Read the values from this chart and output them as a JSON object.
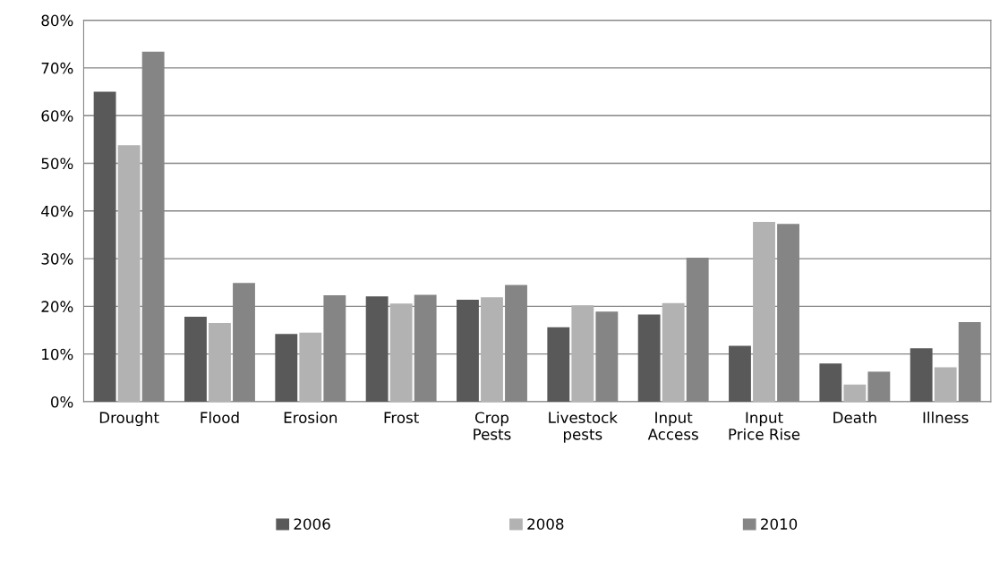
{
  "chart_data": {
    "type": "bar",
    "categories": [
      "Drought",
      "Flood",
      "Erosion",
      "Frost",
      "Crop\nPests",
      "Livestock\npests",
      "Input\nAccess",
      "Input\nPrice Rise",
      "Death",
      "Illness"
    ],
    "series": [
      {
        "name": "2006",
        "color": "#595959",
        "values": [
          65.0,
          17.8,
          14.2,
          22.1,
          21.4,
          15.6,
          18.3,
          11.7,
          8.0,
          11.2
        ]
      },
      {
        "name": "2008",
        "color": "#b2b2b2",
        "values": [
          53.8,
          16.5,
          14.5,
          20.6,
          21.9,
          20.2,
          20.7,
          37.7,
          3.6,
          7.2
        ]
      },
      {
        "name": "2010",
        "color": "#858585",
        "values": [
          73.4,
          24.9,
          22.3,
          22.4,
          24.5,
          18.9,
          30.2,
          37.3,
          6.3,
          16.7
        ]
      }
    ],
    "ylim": [
      0,
      80
    ],
    "yticks": [
      {
        "value": 0,
        "label": "0%"
      },
      {
        "value": 10,
        "label": "10%"
      },
      {
        "value": 20,
        "label": "20%"
      },
      {
        "value": 30,
        "label": "30%"
      },
      {
        "value": 40,
        "label": "40%"
      },
      {
        "value": 50,
        "label": "50%"
      },
      {
        "value": 60,
        "label": "60%"
      },
      {
        "value": 70,
        "label": "70%"
      },
      {
        "value": 80,
        "label": "80%"
      }
    ],
    "grid": "y",
    "legend": "bottom"
  }
}
